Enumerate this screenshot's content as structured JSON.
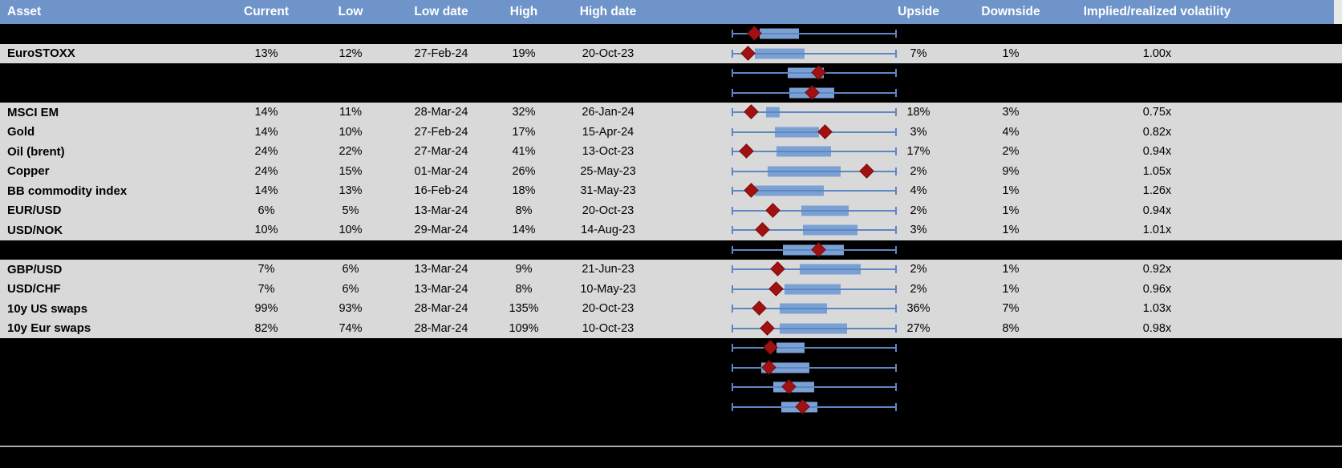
{
  "header": {
    "columns": [
      "Asset",
      "Current",
      "Low",
      "Low date",
      "High",
      "High date",
      "Upside",
      "Downside",
      "Implied/realized volatility"
    ]
  },
  "colors": {
    "header_bg": "#6e94ca",
    "row_bg": "#d9d9d9",
    "spacer_bg": "#000000",
    "box_fill": "#7ba1d4",
    "whisker": "#5d87c3",
    "diamond": "#a21111",
    "footer_line": "#a8a8a8"
  },
  "rows": [
    {
      "type": "spacer",
      "box": {
        "lo": 0.17,
        "hi": 0.41,
        "d": 0.14
      }
    },
    {
      "type": "data",
      "asset": "EuroSTOXX",
      "current": "13%",
      "low": "12%",
      "low_date": "27-Feb-24",
      "high": "19%",
      "high_date": "20-Oct-23",
      "upside": "7%",
      "downside": "1%",
      "implied": "1.00x",
      "box": {
        "lo": 0.14,
        "hi": 0.44,
        "d": 0.1
      }
    },
    {
      "type": "spacer",
      "box": {
        "lo": 0.34,
        "hi": 0.56,
        "d": 0.53
      }
    },
    {
      "type": "spacer",
      "box": {
        "lo": 0.35,
        "hi": 0.62,
        "d": 0.49
      }
    },
    {
      "type": "data",
      "asset": "MSCI EM",
      "current": "14%",
      "low": "11%",
      "low_date": "28-Mar-24",
      "high": "32%",
      "high_date": "26-Jan-24",
      "upside": "18%",
      "downside": "3%",
      "implied": "0.75x",
      "box": {
        "lo": 0.21,
        "hi": 0.29,
        "d": 0.12
      }
    },
    {
      "type": "data",
      "asset": "Gold",
      "current": "14%",
      "low": "10%",
      "low_date": "27-Feb-24",
      "high": "17%",
      "high_date": "15-Apr-24",
      "upside": "3%",
      "downside": "4%",
      "implied": "0.82x",
      "box": {
        "lo": 0.26,
        "hi": 0.53,
        "d": 0.57
      }
    },
    {
      "type": "data",
      "asset": "Oil (brent)",
      "current": "24%",
      "low": "22%",
      "low_date": "27-Mar-24",
      "high": "41%",
      "high_date": "13-Oct-23",
      "upside": "17%",
      "downside": "2%",
      "implied": "0.94x",
      "box": {
        "lo": 0.27,
        "hi": 0.6,
        "d": 0.09
      }
    },
    {
      "type": "data",
      "asset": "Copper",
      "current": "24%",
      "low": "15%",
      "low_date": "01-Mar-24",
      "high": "26%",
      "high_date": "25-May-23",
      "upside": "2%",
      "downside": "9%",
      "implied": "1.05x",
      "box": {
        "lo": 0.22,
        "hi": 0.66,
        "d": 0.82
      }
    },
    {
      "type": "data",
      "asset": "BB commodity index",
      "current": "14%",
      "low": "13%",
      "low_date": "16-Feb-24",
      "high": "18%",
      "high_date": "31-May-23",
      "upside": "4%",
      "downside": "1%",
      "implied": "1.26x",
      "box": {
        "lo": 0.14,
        "hi": 0.56,
        "d": 0.12
      }
    },
    {
      "type": "data",
      "asset": "EUR/USD",
      "current": "6%",
      "low": "5%",
      "low_date": "13-Mar-24",
      "high": "8%",
      "high_date": "20-Oct-23",
      "upside": "2%",
      "downside": "1%",
      "implied": "0.94x",
      "box": {
        "lo": 0.42,
        "hi": 0.71,
        "d": 0.25
      }
    },
    {
      "type": "data",
      "asset": "USD/NOK",
      "current": "10%",
      "low": "10%",
      "low_date": "29-Mar-24",
      "high": "14%",
      "high_date": "14-Aug-23",
      "upside": "3%",
      "downside": "1%",
      "implied": "1.01x",
      "box": {
        "lo": 0.43,
        "hi": 0.76,
        "d": 0.19
      }
    },
    {
      "type": "spacer",
      "box": {
        "lo": 0.31,
        "hi": 0.68,
        "d": 0.53
      }
    },
    {
      "type": "data",
      "asset": "GBP/USD",
      "current": "7%",
      "low": "6%",
      "low_date": "13-Mar-24",
      "high": "9%",
      "high_date": "21-Jun-23",
      "upside": "2%",
      "downside": "1%",
      "implied": "0.92x",
      "box": {
        "lo": 0.41,
        "hi": 0.78,
        "d": 0.28
      }
    },
    {
      "type": "data",
      "asset": "USD/CHF",
      "current": "7%",
      "low": "6%",
      "low_date": "13-Mar-24",
      "high": "8%",
      "high_date": "10-May-23",
      "upside": "2%",
      "downside": "1%",
      "implied": "0.96x",
      "box": {
        "lo": 0.32,
        "hi": 0.66,
        "d": 0.27
      }
    },
    {
      "type": "data",
      "asset": "10y US swaps",
      "current": "99%",
      "low": "93%",
      "low_date": "28-Mar-24",
      "high": "135%",
      "high_date": "20-Oct-23",
      "upside": "36%",
      "downside": "7%",
      "implied": "1.03x",
      "box": {
        "lo": 0.29,
        "hi": 0.58,
        "d": 0.17
      }
    },
    {
      "type": "data",
      "asset": "10y Eur swaps",
      "current": "82%",
      "low": "74%",
      "low_date": "28-Mar-24",
      "high": "109%",
      "high_date": "10-Oct-23",
      "upside": "27%",
      "downside": "8%",
      "implied": "0.98x",
      "box": {
        "lo": 0.29,
        "hi": 0.7,
        "d": 0.22
      }
    },
    {
      "type": "spacer",
      "box": {
        "lo": 0.27,
        "hi": 0.44,
        "d": 0.24
      }
    },
    {
      "type": "spacer",
      "box": {
        "lo": 0.18,
        "hi": 0.47,
        "d": 0.23
      }
    },
    {
      "type": "spacer",
      "box": {
        "lo": 0.25,
        "hi": 0.5,
        "d": 0.35
      }
    },
    {
      "type": "spacer",
      "box": {
        "lo": 0.3,
        "hi": 0.52,
        "d": 0.43
      }
    }
  ]
}
